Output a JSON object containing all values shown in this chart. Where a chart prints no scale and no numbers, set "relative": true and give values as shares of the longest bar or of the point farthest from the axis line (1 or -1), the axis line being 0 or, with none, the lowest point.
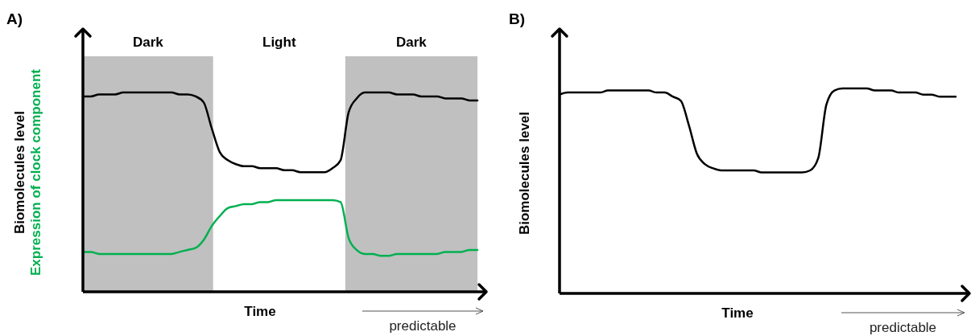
{
  "chart_data": [
    {
      "type": "line",
      "title": "A)",
      "xlabel": "Time",
      "relative": true,
      "categories": [
        null,
        null,
        null,
        null,
        null,
        null,
        null,
        null,
        null,
        null,
        null,
        null,
        null,
        null,
        null,
        null,
        null,
        null,
        null,
        null,
        null,
        null,
        null,
        null,
        null,
        null,
        null,
        null,
        null,
        null,
        null,
        null,
        null,
        null,
        null,
        null,
        null,
        null,
        null,
        null,
        null,
        null,
        null,
        null,
        null,
        null,
        null,
        null,
        null,
        null
      ],
      "series": [
        {
          "name": "Biomolecules level",
          "color": "#000000",
          "values": [
            0.98,
            0.98,
            0.99,
            0.99,
            0.99,
            1.0,
            1.0,
            1,
            1,
            1,
            1,
            1.0,
            0.99,
            0.99,
            0.98,
            0.95,
            0.82,
            0.7,
            0.66,
            0.64,
            0.63,
            0.63,
            0.62,
            0.62,
            0.62,
            0.61,
            0.61,
            0.6,
            0.6,
            0.6,
            0.6,
            0.62,
            0.66,
            0.9,
            0.97,
            1,
            1,
            1,
            1.0,
            0.99,
            0.99,
            0.99,
            0.98,
            0.98,
            0.98,
            0.97,
            0.97,
            0.97,
            0.96,
            0.96
          ]
        },
        {
          "name": "Expression of clock component",
          "color": "#00b050",
          "values": [
            0.2,
            0.2,
            0.19,
            0.19,
            0.19,
            0.19,
            0.19,
            0.19,
            0.19,
            0.19,
            0.19,
            0.19,
            0.2,
            0.21,
            0.22,
            0.26,
            0.33,
            0.38,
            0.42,
            0.43,
            0.44,
            0.44,
            0.45,
            0.45,
            0.46,
            0.46,
            0.46,
            0.46,
            0.46,
            0.46,
            0.46,
            0.46,
            0.45,
            0.27,
            0.21,
            0.19,
            0.19,
            0.18,
            0.18,
            0.19,
            0.19,
            0.19,
            0.19,
            0.19,
            0.19,
            0.2,
            0.2,
            0.2,
            0.21,
            0.21
          ]
        }
      ],
      "annotations": [
        "Dark",
        "Light",
        "Dark",
        "predictable"
      ]
    },
    {
      "type": "line",
      "title": "B)",
      "xlabel": "Time",
      "ylabel": "Biomolecules level",
      "relative": true,
      "categories": [
        null,
        null,
        null,
        null,
        null,
        null,
        null,
        null,
        null,
        null,
        null,
        null,
        null,
        null,
        null,
        null,
        null,
        null,
        null,
        null,
        null,
        null,
        null,
        null,
        null,
        null,
        null,
        null,
        null,
        null,
        null,
        null,
        null,
        null,
        null,
        null,
        null,
        null,
        null,
        null,
        null,
        null,
        null,
        null,
        null,
        null,
        null,
        null,
        null,
        null
      ],
      "series": [
        {
          "color": "#000000",
          "values": [
            0.97,
            0.98,
            0.98,
            0.98,
            0.98,
            0.98,
            0.99,
            0.99,
            0.99,
            0.99,
            0.99,
            0.99,
            0.98,
            0.98,
            0.96,
            0.94,
            0.82,
            0.68,
            0.63,
            0.61,
            0.6,
            0.6,
            0.6,
            0.6,
            0.6,
            0.59,
            0.59,
            0.59,
            0.59,
            0.59,
            0.59,
            0.6,
            0.66,
            0.92,
            0.99,
            1,
            1,
            1,
            1,
            0.99,
            0.99,
            0.99,
            0.98,
            0.98,
            0.98,
            0.97,
            0.97,
            0.96,
            0.96,
            0.96
          ]
        }
      ],
      "annotations": [
        "predictable"
      ]
    }
  ]
}
